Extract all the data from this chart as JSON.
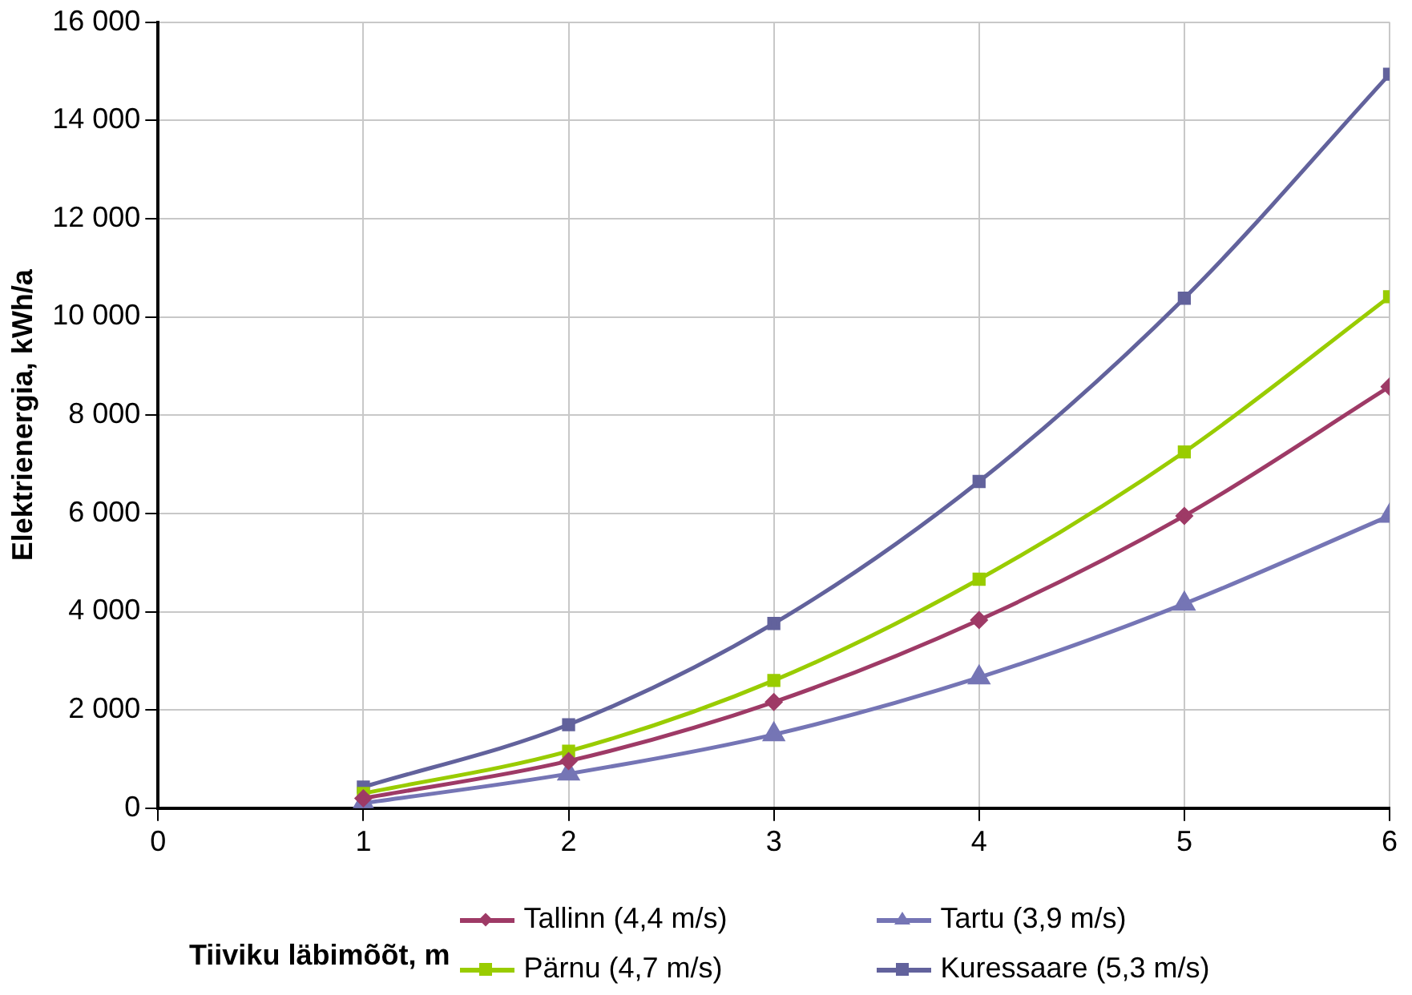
{
  "chart_data": {
    "type": "line",
    "xlabel": "Tiiviku läbimõõt, m",
    "ylabel": "Elektrienergia, kWh/a",
    "x": [
      1,
      2,
      3,
      4,
      5,
      6
    ],
    "series": [
      {
        "name": "Tallinn (4,4 m/s)",
        "color": "#9e3a66",
        "marker": "diamond",
        "values": [
          200,
          960,
          2160,
          3830,
          5950,
          8580
        ]
      },
      {
        "name": "Tartu (3,9 m/s)",
        "color": "#7575b5",
        "marker": "triangle",
        "values": [
          100,
          700,
          1500,
          2660,
          4160,
          5950
        ]
      },
      {
        "name": "Pärnu (4,7 m/s)",
        "color": "#99cc00",
        "marker": "square",
        "values": [
          300,
          1160,
          2600,
          4660,
          7250,
          10410
        ]
      },
      {
        "name": "Kuressaare (5,3 m/s)",
        "color": "#62629c",
        "marker": "square",
        "values": [
          430,
          1700,
          3760,
          6650,
          10380,
          14940
        ]
      }
    ],
    "xlim": [
      0,
      6
    ],
    "xticks": [
      0,
      1,
      2,
      3,
      4,
      5,
      6
    ],
    "ylim": [
      0,
      16000
    ],
    "yticks": [
      0,
      {
        "value": 2000,
        "label": "2 000"
      },
      {
        "value": 4000,
        "label": "4 000"
      },
      {
        "value": 6000,
        "label": "6 000"
      },
      {
        "value": 8000,
        "label": "8 000"
      },
      {
        "value": 10000,
        "label": "10 000"
      },
      {
        "value": 12000,
        "label": "12 000"
      },
      {
        "value": 14000,
        "label": "14 000"
      },
      {
        "value": 16000,
        "label": "16 000"
      }
    ],
    "grid": true,
    "legend": "bottom",
    "line_style": "solid"
  }
}
